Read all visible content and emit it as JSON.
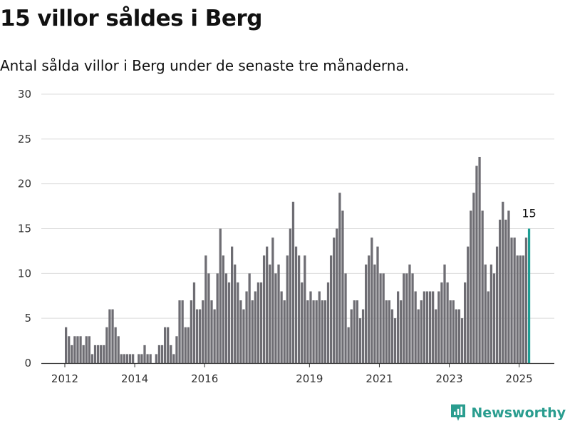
{
  "title": "15 villor såldes i Berg",
  "subtitle": "Antal sålda villor i Berg under de senaste tre månaderna.",
  "brand": {
    "name": "Newsworthy",
    "icon": "newsworthy-logo-icon"
  },
  "colors": {
    "bar": "#6e6d73",
    "highlight": "#1e9e94",
    "grid": "#dcdcdc",
    "axis": "#333333"
  },
  "chart_data": {
    "type": "bar",
    "x_start": "2012-01",
    "x_ticks": [
      "2012",
      "2014",
      "2016",
      "2019",
      "2021",
      "2023",
      "2025"
    ],
    "ylim": [
      0,
      30
    ],
    "y_ticks": [
      0,
      5,
      10,
      15,
      20,
      25,
      30
    ],
    "grid": true,
    "highlight_last": true,
    "last_value_label": "15",
    "values": [
      4,
      3,
      2,
      3,
      3,
      3,
      2,
      3,
      3,
      1,
      2,
      2,
      2,
      2,
      4,
      6,
      6,
      4,
      3,
      1,
      1,
      1,
      1,
      1,
      0,
      1,
      1,
      2,
      1,
      1,
      0,
      1,
      2,
      2,
      4,
      4,
      2,
      1,
      3,
      7,
      7,
      4,
      4,
      7,
      9,
      6,
      6,
      7,
      12,
      10,
      7,
      6,
      10,
      15,
      12,
      10,
      9,
      13,
      11,
      9,
      7,
      6,
      8,
      10,
      7,
      8,
      9,
      9,
      12,
      13,
      11,
      14,
      10,
      11,
      8,
      7,
      12,
      15,
      18,
      13,
      12,
      9,
      12,
      7,
      8,
      7,
      7,
      8,
      7,
      7,
      9,
      12,
      14,
      15,
      19,
      17,
      10,
      4,
      6,
      7,
      7,
      5,
      6,
      11,
      12,
      14,
      11,
      13,
      10,
      10,
      7,
      7,
      6,
      5,
      8,
      7,
      10,
      10,
      11,
      10,
      8,
      6,
      7,
      8,
      8,
      8,
      8,
      6,
      8,
      9,
      11,
      9,
      7,
      7,
      6,
      6,
      5,
      9,
      13,
      17,
      19,
      22,
      23,
      17,
      11,
      8,
      11,
      10,
      13,
      16,
      18,
      16,
      17,
      14,
      14,
      12,
      12,
      12,
      14,
      15
    ]
  }
}
